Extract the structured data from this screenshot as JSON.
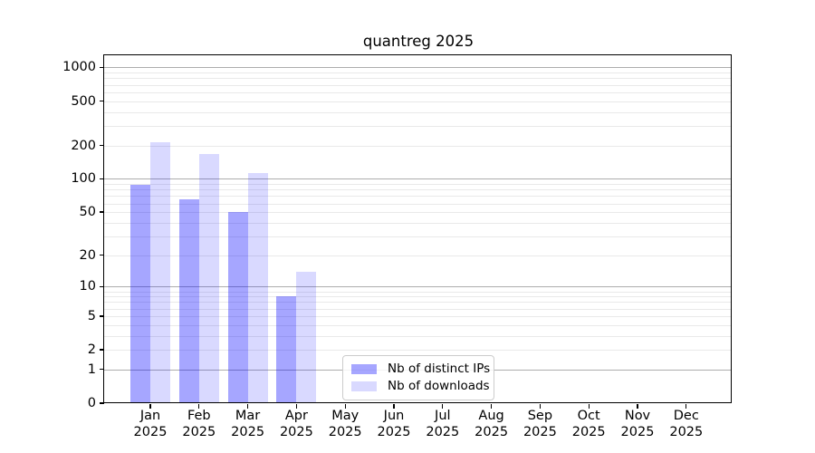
{
  "chart_data": {
    "type": "bar",
    "title": "quantreg 2025",
    "x_year": "2025",
    "x_months": [
      "Jan",
      "Feb",
      "Mar",
      "Apr",
      "May",
      "Jun",
      "Jul",
      "Aug",
      "Sep",
      "Oct",
      "Nov",
      "Dec"
    ],
    "categories": [
      "Jan 2025",
      "Feb 2025",
      "Mar 2025",
      "Apr 2025",
      "May 2025",
      "Jun 2025",
      "Jul 2025",
      "Aug 2025",
      "Sep 2025",
      "Oct 2025",
      "Nov 2025",
      "Dec 2025"
    ],
    "series": [
      {
        "name": "Nb of distinct IPs",
        "color": "rgba(0,0,255,0.35)",
        "values": [
          88,
          65,
          50,
          8,
          null,
          null,
          null,
          null,
          null,
          null,
          null,
          null
        ]
      },
      {
        "name": "Nb of downloads",
        "color": "rgba(0,0,255,0.15)",
        "values": [
          215,
          168,
          113,
          14,
          null,
          null,
          null,
          null,
          null,
          null,
          null,
          null
        ]
      }
    ],
    "yscale": "log1p",
    "ylim": [
      0,
      1285
    ],
    "yticks": [
      0,
      1,
      2,
      5,
      10,
      20,
      50,
      100,
      200,
      500,
      1000
    ],
    "gridlines": {
      "major": [
        1,
        10,
        100,
        1000
      ],
      "minor": [
        2,
        3,
        4,
        5,
        6,
        7,
        8,
        9,
        20,
        30,
        40,
        50,
        60,
        70,
        80,
        90,
        200,
        300,
        400,
        500,
        600,
        700,
        800,
        900
      ]
    },
    "grid": "horizontal",
    "legend_position": "lower center"
  },
  "legend": {
    "items": [
      {
        "label": "Nb of distinct IPs"
      },
      {
        "label": "Nb of downloads"
      }
    ]
  }
}
